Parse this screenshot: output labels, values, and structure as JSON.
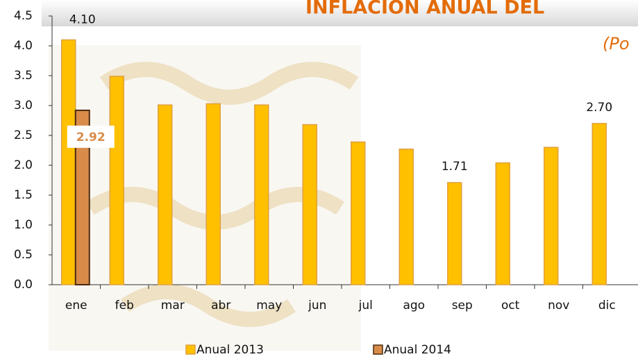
{
  "chart_data": {
    "type": "bar",
    "title": "INFLACION  ANUAL  DEL",
    "subtitle": "(Po",
    "categories": [
      "ene",
      "feb",
      "mar",
      "abr",
      "may",
      "jun",
      "jul",
      "ago",
      "sep",
      "oct",
      "nov",
      "dic"
    ],
    "series": [
      {
        "name": "Anual 2013",
        "color": "#FFC000",
        "values": [
          4.1,
          3.49,
          3.01,
          3.03,
          3.01,
          2.68,
          2.39,
          2.27,
          1.71,
          2.04,
          2.3,
          2.7
        ],
        "value_labels": [
          "4.10",
          null,
          null,
          null,
          null,
          null,
          null,
          null,
          "1.71",
          null,
          null,
          "2.70"
        ]
      },
      {
        "name": "Anual 2014",
        "color": "#D98C4A",
        "values": [
          2.92,
          null,
          null,
          null,
          null,
          null,
          null,
          null,
          null,
          null,
          null,
          null
        ],
        "value_labels": [
          "2.92",
          null,
          null,
          null,
          null,
          null,
          null,
          null,
          null,
          null,
          null,
          null
        ]
      }
    ],
    "ylim": [
      0,
      4.5
    ],
    "yticks": [
      {
        "value": 0,
        "label": "0.0"
      },
      0.5,
      {
        "value": 1,
        "label": "1.0"
      },
      1.5,
      {
        "value": 2,
        "label": "2.0"
      },
      2.5,
      {
        "value": 3,
        "label": "3.0"
      },
      3.5,
      {
        "value": 4,
        "label": "4.0"
      },
      4.5
    ]
  }
}
